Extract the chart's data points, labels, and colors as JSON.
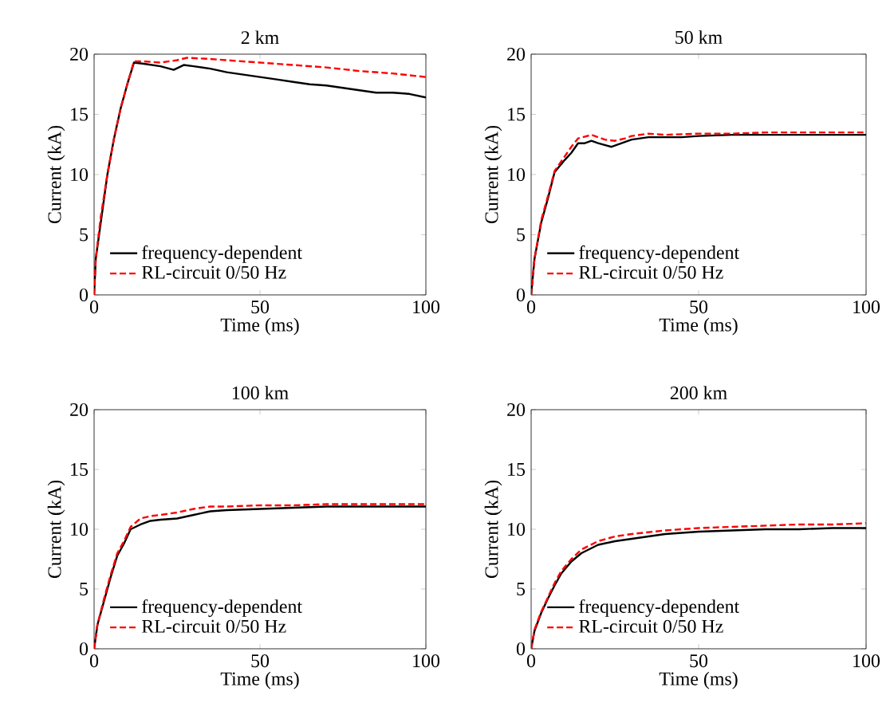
{
  "chart_data": [
    {
      "type": "line",
      "title": "2 km",
      "xlabel": "Time (ms)",
      "ylabel": "Current (kA)",
      "xlim": [
        0,
        100
      ],
      "ylim": [
        0,
        20
      ],
      "xticks": [
        0,
        50,
        100
      ],
      "yticks": [
        0,
        5,
        10,
        15,
        20
      ],
      "legend": "bottom left",
      "series": [
        {
          "name": "frequency-dependent",
          "color": "#000000",
          "line_style": "solid",
          "x": [
            0,
            0.5,
            2,
            4,
            6,
            8,
            10,
            12,
            15,
            20,
            24,
            27,
            30,
            35,
            40,
            45,
            50,
            55,
            60,
            65,
            70,
            75,
            80,
            85,
            90,
            95,
            100
          ],
          "values": [
            0,
            3,
            6,
            10,
            13,
            15.5,
            17.5,
            19.3,
            19.2,
            19,
            18.7,
            19.1,
            19,
            18.8,
            18.5,
            18.3,
            18.1,
            17.9,
            17.7,
            17.5,
            17.4,
            17.2,
            17,
            16.8,
            16.8,
            16.7,
            16.4
          ]
        },
        {
          "name": "RL-circuit 0/50 Hz",
          "color": "#ff0000",
          "line_style": "dashed",
          "x": [
            0,
            0.5,
            2,
            4,
            6,
            8,
            10,
            12,
            15,
            20,
            25,
            28,
            35,
            40,
            50,
            60,
            70,
            80,
            90,
            100
          ],
          "values": [
            0,
            3,
            6.5,
            10,
            13,
            15.5,
            17.5,
            19.4,
            19.4,
            19.3,
            19.5,
            19.7,
            19.6,
            19.5,
            19.3,
            19.1,
            18.9,
            18.6,
            18.4,
            18.1
          ]
        }
      ]
    },
    {
      "type": "line",
      "title": "50 km",
      "xlabel": "Time (ms)",
      "ylabel": "Current (kA)",
      "xlim": [
        0,
        100
      ],
      "ylim": [
        0,
        20
      ],
      "xticks": [
        0,
        50,
        100
      ],
      "yticks": [
        0,
        5,
        10,
        15,
        20
      ],
      "legend": "bottom left",
      "series": [
        {
          "name": "frequency-dependent",
          "color": "#000000",
          "line_style": "solid",
          "x": [
            0,
            1,
            3,
            5,
            7,
            10,
            12,
            14,
            16,
            18,
            20,
            24,
            27,
            30,
            35,
            40,
            45,
            50,
            60,
            70,
            80,
            90,
            100
          ],
          "values": [
            0,
            3,
            6,
            8,
            10.2,
            11.2,
            11.8,
            12.6,
            12.6,
            12.8,
            12.6,
            12.3,
            12.6,
            12.9,
            13.1,
            13.1,
            13.1,
            13.2,
            13.3,
            13.3,
            13.3,
            13.3,
            13.3
          ]
        },
        {
          "name": "RL-circuit 0/50 Hz",
          "color": "#ff0000",
          "line_style": "dashed",
          "x": [
            0,
            1,
            3,
            5,
            7,
            10,
            12,
            14,
            18,
            22,
            25,
            28,
            30,
            35,
            40,
            50,
            60,
            70,
            80,
            90,
            100
          ],
          "values": [
            0,
            3,
            6.2,
            8.2,
            10.3,
            11.5,
            12.3,
            13,
            13.3,
            12.9,
            12.8,
            13,
            13.2,
            13.4,
            13.3,
            13.4,
            13.4,
            13.5,
            13.5,
            13.5,
            13.5
          ]
        }
      ]
    },
    {
      "type": "line",
      "title": "100 km",
      "xlabel": "Time (ms)",
      "ylabel": "Current (kA)",
      "xlim": [
        0,
        100
      ],
      "ylim": [
        0,
        20
      ],
      "xticks": [
        0,
        50,
        100
      ],
      "yticks": [
        0,
        5,
        10,
        15,
        20
      ],
      "legend": "bottom left",
      "series": [
        {
          "name": "frequency-dependent",
          "color": "#000000",
          "line_style": "solid",
          "x": [
            0,
            1,
            3,
            5,
            7,
            9,
            11,
            14,
            17,
            20,
            25,
            30,
            35,
            40,
            50,
            60,
            70,
            80,
            90,
            100
          ],
          "values": [
            0,
            2,
            4,
            6,
            7.8,
            8.8,
            10,
            10.4,
            10.7,
            10.8,
            10.9,
            11.2,
            11.5,
            11.6,
            11.7,
            11.8,
            11.9,
            11.9,
            11.9,
            11.9
          ]
        },
        {
          "name": "RL-circuit 0/50 Hz",
          "color": "#ff0000",
          "line_style": "dashed",
          "x": [
            0,
            1,
            3,
            5,
            7,
            9,
            11,
            14,
            17,
            20,
            25,
            30,
            35,
            40,
            50,
            60,
            70,
            80,
            90,
            100
          ],
          "values": [
            0,
            2,
            4.2,
            6.2,
            8,
            9,
            10.2,
            10.9,
            11.1,
            11.2,
            11.4,
            11.7,
            11.9,
            11.9,
            12,
            12,
            12.1,
            12.1,
            12.1,
            12.1
          ]
        }
      ]
    },
    {
      "type": "line",
      "title": "200 km",
      "xlabel": "Time (ms)",
      "ylabel": "Current (kA)",
      "xlim": [
        0,
        100
      ],
      "ylim": [
        0,
        20
      ],
      "xticks": [
        0,
        50,
        100
      ],
      "yticks": [
        0,
        5,
        10,
        15,
        20
      ],
      "legend": "bottom left",
      "series": [
        {
          "name": "frequency-dependent",
          "color": "#000000",
          "line_style": "solid",
          "x": [
            0,
            1,
            3,
            5,
            7,
            9,
            12,
            15,
            20,
            25,
            30,
            40,
            50,
            60,
            70,
            80,
            90,
            100
          ],
          "values": [
            0,
            1.5,
            3,
            4.2,
            5.3,
            6.3,
            7.3,
            8,
            8.7,
            9,
            9.2,
            9.6,
            9.8,
            9.9,
            10,
            10,
            10.1,
            10.1
          ]
        },
        {
          "name": "RL-circuit 0/50 Hz",
          "color": "#ff0000",
          "line_style": "dashed",
          "x": [
            0,
            1,
            3,
            5,
            7,
            9,
            12,
            15,
            20,
            25,
            30,
            40,
            50,
            60,
            70,
            80,
            90,
            100
          ],
          "values": [
            0,
            1.6,
            3.1,
            4.3,
            5.5,
            6.5,
            7.5,
            8.3,
            9,
            9.4,
            9.6,
            9.9,
            10.1,
            10.2,
            10.3,
            10.4,
            10.4,
            10.5
          ]
        }
      ]
    }
  ]
}
